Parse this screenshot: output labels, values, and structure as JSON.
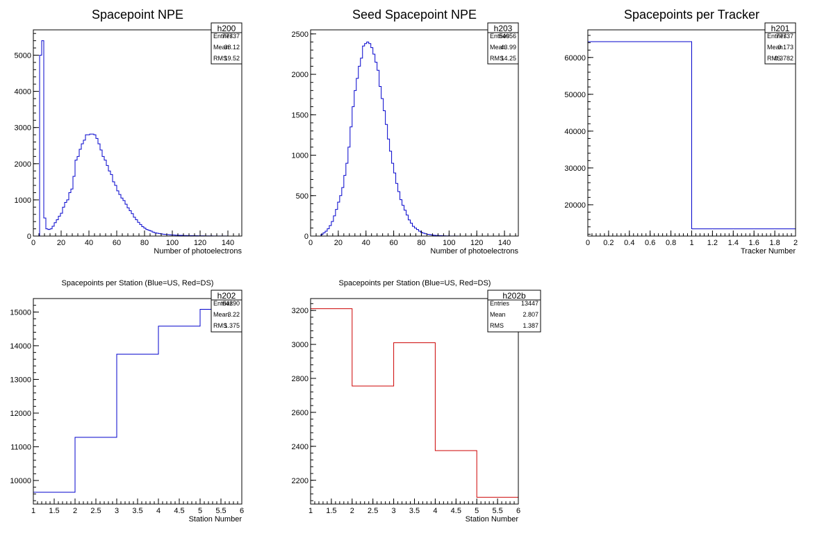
{
  "chart_data": [
    {
      "id": "h200",
      "type": "histogram",
      "title": "Spacepoint NPE",
      "xlabel": "Number of photoelectrons",
      "ylabel": "",
      "xlim": [
        0,
        150
      ],
      "ylim": [
        0,
        5700
      ],
      "xticks": [
        0,
        20,
        40,
        60,
        80,
        100,
        120,
        140
      ],
      "yticks": [
        0,
        1000,
        2000,
        3000,
        4000,
        5000
      ],
      "bin_start": 0,
      "bin_width": 1.5,
      "values": [
        0,
        0,
        0,
        5000,
        5400,
        500,
        200,
        180,
        200,
        270,
        370,
        450,
        550,
        630,
        800,
        930,
        1000,
        1200,
        1300,
        1650,
        2100,
        2200,
        2400,
        2550,
        2650,
        2800,
        2800,
        2820,
        2820,
        2800,
        2700,
        2550,
        2380,
        2200,
        2100,
        1950,
        1800,
        1700,
        1500,
        1400,
        1250,
        1150,
        1050,
        980,
        880,
        780,
        700,
        620,
        520,
        450,
        380,
        320,
        260,
        220,
        180,
        160,
        140,
        110,
        90,
        80,
        70,
        60,
        50,
        45,
        40,
        35,
        30,
        28,
        25,
        22,
        20,
        18,
        15,
        14,
        13,
        12,
        11,
        10,
        9,
        8,
        7,
        6,
        5,
        5,
        4,
        4,
        3,
        3,
        2,
        2,
        2,
        2,
        2,
        1,
        1,
        1,
        1,
        1,
        1,
        1
      ],
      "color": "#0000cc",
      "stats": {
        "name": "h200",
        "entries": "77737",
        "mean": "38.12",
        "rms": "19.52"
      }
    },
    {
      "id": "h203",
      "type": "histogram",
      "title": "Seed Spacepoint NPE",
      "xlabel": "Number of photoelectrons",
      "ylabel": "",
      "xlim": [
        0,
        150
      ],
      "ylim": [
        0,
        2550
      ],
      "xticks": [
        0,
        20,
        40,
        60,
        80,
        100,
        120,
        140
      ],
      "yticks": [
        0,
        500,
        1000,
        1500,
        2000,
        2500
      ],
      "bin_start": 0,
      "bin_width": 1.5,
      "values": [
        0,
        0,
        0,
        0,
        0,
        20,
        40,
        60,
        90,
        130,
        180,
        250,
        330,
        420,
        500,
        600,
        750,
        900,
        1100,
        1350,
        1600,
        1800,
        1950,
        2100,
        2200,
        2350,
        2380,
        2400,
        2380,
        2330,
        2250,
        2150,
        2050,
        1850,
        1700,
        1550,
        1380,
        1200,
        1050,
        900,
        780,
        650,
        550,
        450,
        380,
        320,
        260,
        200,
        160,
        120,
        100,
        80,
        60,
        45,
        35,
        28,
        22,
        18,
        14,
        10,
        8,
        6,
        5,
        4,
        3,
        2,
        2,
        1,
        1,
        1,
        1,
        0,
        0,
        0,
        0,
        0,
        0,
        0,
        0,
        0,
        0,
        0,
        0,
        0,
        0,
        0,
        0,
        0,
        0,
        0,
        0,
        0,
        0,
        0,
        0,
        0,
        0,
        0,
        0,
        0
      ],
      "color": "#0000cc",
      "stats": {
        "name": "h203",
        "entries": "54056",
        "mean": "43.99",
        "rms": "14.25"
      }
    },
    {
      "id": "h201",
      "type": "histogram",
      "title": "Spacepoints per Tracker",
      "xlabel": "Tracker Number",
      "ylabel": "",
      "xlim": [
        0,
        2
      ],
      "ylim": [
        11500,
        67500
      ],
      "xticks": [
        0,
        0.2,
        0.4,
        0.6,
        0.8,
        1,
        1.2,
        1.4,
        1.6,
        1.8,
        2
      ],
      "yticks": [
        20000,
        30000,
        40000,
        50000,
        60000
      ],
      "bin_start": 0,
      "bin_width": 1,
      "values": [
        64290,
        13447
      ],
      "color": "#0000cc",
      "stats": {
        "name": "h201",
        "entries": "77737",
        "mean": "0.173",
        "rms": "0.3782"
      }
    },
    {
      "id": "h202",
      "type": "histogram",
      "title": "Spacepoints per Station (Blue=US, Red=DS)",
      "xlabel": "Station Number",
      "ylabel": "",
      "xlim": [
        1,
        6
      ],
      "ylim": [
        9300,
        15400
      ],
      "xticks": [
        1,
        1.5,
        2,
        2.5,
        3,
        3.5,
        4,
        4.5,
        5,
        5.5,
        6
      ],
      "yticks": [
        10000,
        11000,
        12000,
        13000,
        14000,
        15000
      ],
      "bin_start": 1,
      "bin_width": 1,
      "values": [
        9650,
        11280,
        13750,
        14580,
        15080
      ],
      "color": "#0000cc",
      "stats": {
        "name": "h202",
        "entries": "64290",
        "mean": "3.22",
        "rms": "1.375"
      }
    },
    {
      "id": "h202b",
      "type": "histogram",
      "title": "Spacepoints per Station (Blue=US, Red=DS)",
      "xlabel": "Station Number",
      "ylabel": "",
      "xlim": [
        1,
        6
      ],
      "ylim": [
        2060,
        3270
      ],
      "xticks": [
        1,
        1.5,
        2,
        2.5,
        3,
        3.5,
        4,
        4.5,
        5,
        5.5,
        6
      ],
      "yticks": [
        2200,
        2400,
        2600,
        2800,
        3000,
        3200
      ],
      "bin_start": 1,
      "bin_width": 1,
      "values": [
        3210,
        2755,
        3010,
        2375,
        2100
      ],
      "color": "#cc0000",
      "stats": {
        "name": "h202b",
        "entries": "13447",
        "mean": "2.807",
        "rms": "1.387"
      }
    }
  ],
  "labels": {
    "entries": "Entries",
    "mean": "Mean",
    "rms": "RMS"
  }
}
